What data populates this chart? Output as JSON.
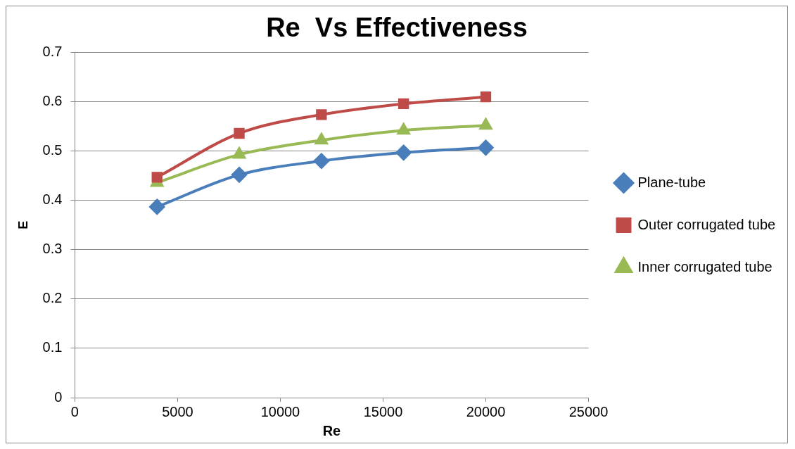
{
  "chart_data": {
    "type": "line",
    "title": "Re  Vs Effectiveness",
    "xlabel": "Re",
    "ylabel": "E",
    "x": [
      4000,
      8000,
      12000,
      16000,
      20000
    ],
    "series": [
      {
        "name": "Plane-tube",
        "color": "#4a7ebb",
        "marker": "diamond",
        "values": [
          0.387,
          0.452,
          0.48,
          0.497,
          0.507
        ]
      },
      {
        "name": "Outer corrugated tube",
        "color": "#be4b48",
        "marker": "square",
        "values": [
          0.447,
          0.536,
          0.574,
          0.596,
          0.61
        ]
      },
      {
        "name": "Inner corrugated tube",
        "color": "#98b954",
        "marker": "triangle",
        "values": [
          0.436,
          0.493,
          0.522,
          0.542,
          0.552
        ]
      }
    ],
    "xlim": [
      0,
      25000
    ],
    "xticks": [
      0,
      5000,
      10000,
      15000,
      20000,
      25000
    ],
    "ylim": [
      0,
      0.7
    ],
    "yticks": [
      0,
      0.1,
      0.2,
      0.3,
      0.4,
      0.5,
      0.6,
      0.7
    ],
    "grid": "y",
    "legend": "right",
    "line_style": "solid"
  }
}
